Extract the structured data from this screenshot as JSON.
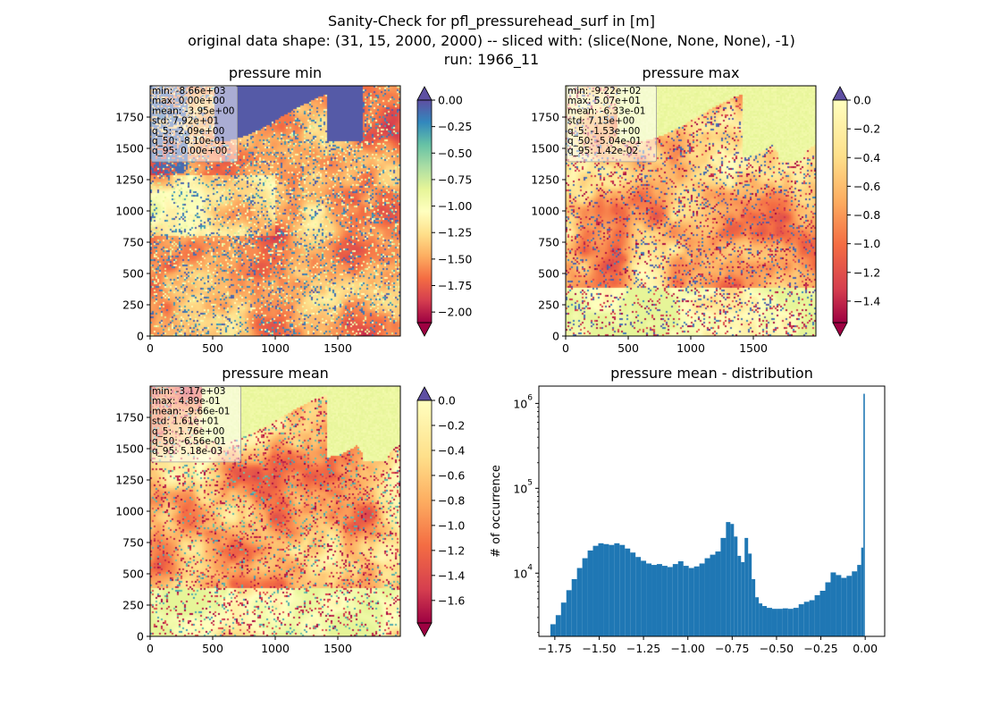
{
  "figure": {
    "title_lines": [
      "Sanity-Check for pfl_pressurehead_surf in [m]",
      "original data shape: (31, 15, 2000, 2000) -- sliced with: (slice(None, None, None), -1)",
      "run: 1966_11"
    ]
  },
  "colors": {
    "spectral": [
      "#9e0142",
      "#d53e4f",
      "#f46d43",
      "#fdae61",
      "#fee08b",
      "#ffffbf",
      "#e6f598",
      "#abdda4",
      "#66c2a5",
      "#3288bd",
      "#5e4fa2"
    ],
    "hist_bar": "#1f77b4"
  },
  "chart_data": [
    {
      "type": "heatmap",
      "title": "pressure min",
      "x_ticks": [
        "0",
        "500",
        "1000",
        "1500"
      ],
      "y_ticks": [
        "0",
        "250",
        "500",
        "750",
        "1000",
        "1250",
        "1500",
        "1750"
      ],
      "xlim": [
        0,
        2000
      ],
      "ylim": [
        0,
        2000
      ],
      "colormap": "Spectral",
      "colorbar": {
        "vmin": -2.1,
        "vmax": 0.0,
        "ticks": [
          "0.00",
          "−0.25",
          "−0.50",
          "−0.75",
          "−1.00",
          "−1.25",
          "−1.50",
          "−1.75",
          "−2.00"
        ],
        "extend": "both"
      },
      "stats": [
        "min: -8.66e+03",
        "max: 0.00e+00",
        "mean: -3.95e+00",
        "std: 7.92e+01",
        "q_5: -2.09e+00",
        "q_50: -8.10e-01",
        "q_95: 0.00e+00"
      ]
    },
    {
      "type": "heatmap",
      "title": "pressure max",
      "x_ticks": [
        "0",
        "500",
        "1000",
        "1500"
      ],
      "y_ticks": [
        "0",
        "250",
        "500",
        "750",
        "1000",
        "1250",
        "1500",
        "1750"
      ],
      "xlim": [
        0,
        2000
      ],
      "ylim": [
        0,
        2000
      ],
      "colormap": "Spectral",
      "colorbar": {
        "vmin": -1.55,
        "vmax": 0.0,
        "ticks": [
          "0.0",
          "−0.2",
          "−0.4",
          "−0.6",
          "−0.8",
          "−1.0",
          "−1.2",
          "−1.4"
        ],
        "extend": "both"
      },
      "stats": [
        "min: -9.22e+02",
        "max: 5.07e+01",
        "mean: -6.33e-01",
        "std: 7.15e+00",
        "q_5: -1.53e+00",
        "q_50: -5.04e-01",
        "q_95: 1.42e-02"
      ]
    },
    {
      "type": "heatmap",
      "title": "pressure mean",
      "x_ticks": [
        "0",
        "500",
        "1000",
        "1500"
      ],
      "y_ticks": [
        "0",
        "250",
        "500",
        "750",
        "1000",
        "1250",
        "1500",
        "1750"
      ],
      "xlim": [
        0,
        2000
      ],
      "ylim": [
        0,
        2000
      ],
      "colormap": "Spectral",
      "colorbar": {
        "vmin": -1.78,
        "vmax": 0.0,
        "ticks": [
          "0.0",
          "−0.2",
          "−0.4",
          "−0.6",
          "−0.8",
          "−1.0",
          "−1.2",
          "−1.4",
          "−1.6"
        ],
        "extend": "both"
      },
      "stats": [
        "min: -3.17e+03",
        "max: 4.89e-01",
        "mean: -9.66e-01",
        "std: 1.61e+01",
        "q_5: -1.76e+00",
        "q_50: -6.56e-01",
        "q_95: 5.18e-03"
      ]
    },
    {
      "type": "bar",
      "title": "pressure mean - distribution",
      "ylabel": "# of occurrence",
      "yscale": "log",
      "xlim": [
        -1.84,
        0.11
      ],
      "ylim": [
        1800,
        1600000
      ],
      "x_ticks": [
        -1.75,
        -1.5,
        -1.25,
        -1.0,
        -0.75,
        -0.5,
        -0.25,
        0.0
      ],
      "x_tick_labels": [
        "−1.75",
        "−1.50",
        "−1.25",
        "−1.00",
        "−0.75",
        "−0.50",
        "−0.25",
        "0.00"
      ],
      "y_ticks": [
        10000,
        100000,
        1000000
      ],
      "y_tick_labels": [
        "10^4",
        "10^5",
        "10^6"
      ],
      "series": [
        {
          "x": [
            -1.76,
            -1.73,
            -1.7,
            -1.67,
            -1.64,
            -1.61,
            -1.58,
            -1.55,
            -1.52,
            -1.49,
            -1.46,
            -1.43,
            -1.4,
            -1.37,
            -1.34,
            -1.31,
            -1.28,
            -1.25,
            -1.22,
            -1.19,
            -1.16,
            -1.13,
            -1.1,
            -1.07,
            -1.04,
            -1.01,
            -0.98,
            -0.95,
            -0.92,
            -0.89,
            -0.86,
            -0.83,
            -0.8,
            -0.77,
            -0.75,
            -0.73,
            -0.71,
            -0.69,
            -0.67,
            -0.65,
            -0.63,
            -0.61,
            -0.59,
            -0.57,
            -0.54,
            -0.51,
            -0.48,
            -0.45,
            -0.42,
            -0.39,
            -0.36,
            -0.33,
            -0.3,
            -0.27,
            -0.24,
            -0.21,
            -0.18,
            -0.15,
            -0.12,
            -0.09,
            -0.06,
            -0.03,
            -0.015,
            -0.005
          ],
          "values": [
            2500,
            3200,
            4500,
            6300,
            8500,
            11500,
            15000,
            18500,
            21000,
            22500,
            22000,
            21500,
            22500,
            21500,
            19500,
            17500,
            15500,
            14000,
            13000,
            12500,
            12800,
            12200,
            11800,
            12800,
            13800,
            12200,
            11500,
            12000,
            13000,
            15000,
            16500,
            18000,
            26000,
            40000,
            38000,
            27000,
            16000,
            13500,
            26000,
            17000,
            8500,
            5200,
            4400,
            4100,
            3900,
            3800,
            3800,
            3850,
            3800,
            3900,
            4300,
            4600,
            4800,
            5500,
            6200,
            7800,
            10200,
            9500,
            8800,
            9300,
            10500,
            12500,
            20000,
            1300000
          ]
        }
      ]
    }
  ]
}
